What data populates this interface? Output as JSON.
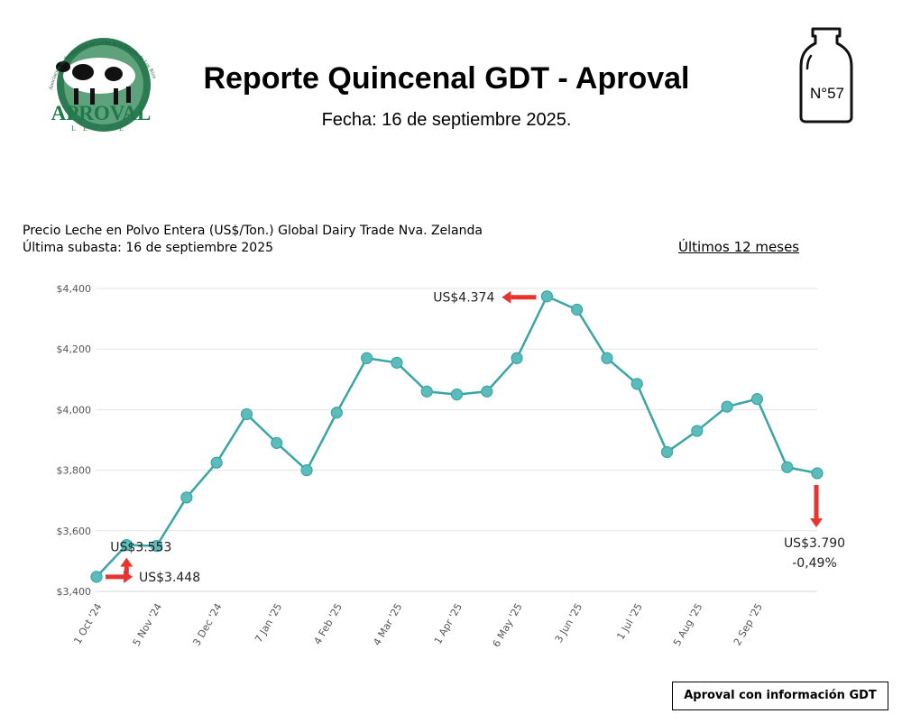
{
  "header": {
    "title": "Reporte Quincenal GDT - Aproval",
    "date": "Fecha: 16 de septiembre 2025.",
    "issue_number": "N°57",
    "logo": {
      "org_name": "APROVAL",
      "sub_name": "LECHE",
      "arc_text": "Asociación de Productores de Leche de la Región de Los Ríos"
    }
  },
  "chart_header": {
    "title_line1": "Precio Leche en Polvo Entera (US$/Ton.) Global Dairy Trade Nva. Zelanda",
    "title_line2": "Última subasta: 16 de septiembre 2025",
    "period": "Últimos 12 meses"
  },
  "chart_data": {
    "type": "line",
    "x_labels": [
      "1 Oct '24",
      "5 Nov '24",
      "3 Dec '24",
      "7 Jan '25",
      "4 Feb '25",
      "4 Mar '25",
      "1 Apr '25",
      "6 May '25",
      "3 Jun '25",
      "1 Jul '25",
      "5 Aug '25",
      "2 Sep '25"
    ],
    "values": [
      3448,
      3553,
      3550,
      3710,
      3825,
      3985,
      3890,
      3800,
      3990,
      4170,
      4155,
      4060,
      4050,
      4060,
      4170,
      4374,
      4330,
      4170,
      4085,
      3860,
      3930,
      4010,
      4035,
      3810,
      3790
    ],
    "label_every": 2,
    "ylim": [
      3400,
      4400
    ],
    "y_ticks": [
      3400,
      3600,
      3800,
      4000,
      4200,
      4400
    ],
    "y_tick_labels": [
      "$3,400",
      "$3,600",
      "$3,800",
      "$4,000",
      "$4,200",
      "$4,400"
    ],
    "grid": true,
    "line_color": "#3aa5a5",
    "marker_fill": "#5cbcbc",
    "arrow_color": "#e8332f",
    "annotations": [
      {
        "text": "US$3.448",
        "point_index": 0
      },
      {
        "text": "US$3.553",
        "point_index": 1
      },
      {
        "text": "US$4.374",
        "point_index": 15
      },
      {
        "text": "US$3.790",
        "text2": "-0,49%",
        "point_index": 24
      }
    ]
  },
  "footer": {
    "source": "Aproval con información GDT"
  }
}
